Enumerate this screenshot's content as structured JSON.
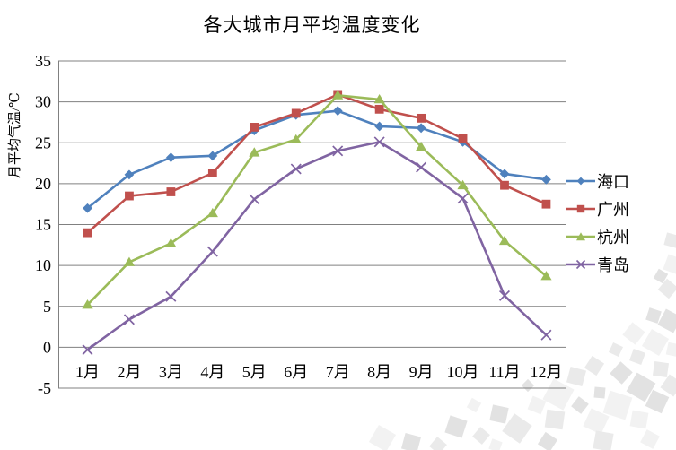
{
  "title": "各大城市月平均温度变化",
  "chart_data": {
    "type": "line",
    "title": "各大城市月平均温度变化",
    "ylabel": "月平均气温/℃",
    "xlabel": "",
    "categories": [
      "1月",
      "2月",
      "3月",
      "4月",
      "5月",
      "6月",
      "7月",
      "8月",
      "9月",
      "10月",
      "11月",
      "12月"
    ],
    "series": [
      {
        "name": "海口",
        "marker": "diamond",
        "color": "#4F81BD",
        "values": [
          17.0,
          21.1,
          23.2,
          23.4,
          26.5,
          28.4,
          28.9,
          27.0,
          26.8,
          25.1,
          21.2,
          20.5
        ]
      },
      {
        "name": "广州",
        "marker": "square",
        "color": "#C0504D",
        "values": [
          14.0,
          18.5,
          19.0,
          21.3,
          26.9,
          28.6,
          30.9,
          29.1,
          28.0,
          25.5,
          19.8,
          17.5
        ]
      },
      {
        "name": "杭州",
        "marker": "triangle",
        "color": "#9BBB59",
        "values": [
          5.2,
          10.4,
          12.7,
          16.4,
          23.8,
          25.4,
          30.8,
          30.3,
          24.5,
          19.8,
          13.0,
          8.7
        ]
      },
      {
        "name": "青岛",
        "marker": "x",
        "color": "#8064A2",
        "values": [
          -0.3,
          3.4,
          6.2,
          11.7,
          18.1,
          21.8,
          24.0,
          25.1,
          22.0,
          18.2,
          6.3,
          1.5
        ]
      }
    ],
    "ylim": [
      -5,
      35
    ],
    "yticks": [
      -5,
      0,
      5,
      10,
      15,
      20,
      25,
      30,
      35
    ],
    "grid": true,
    "legend_position": "right"
  },
  "colors": {
    "gridline": "#808080",
    "axis": "#808080",
    "text": "#000000",
    "background": "#FFFFFF",
    "decoration_shades": [
      "#e2e2e2",
      "#eaeaea",
      "#f2f2f2"
    ]
  }
}
